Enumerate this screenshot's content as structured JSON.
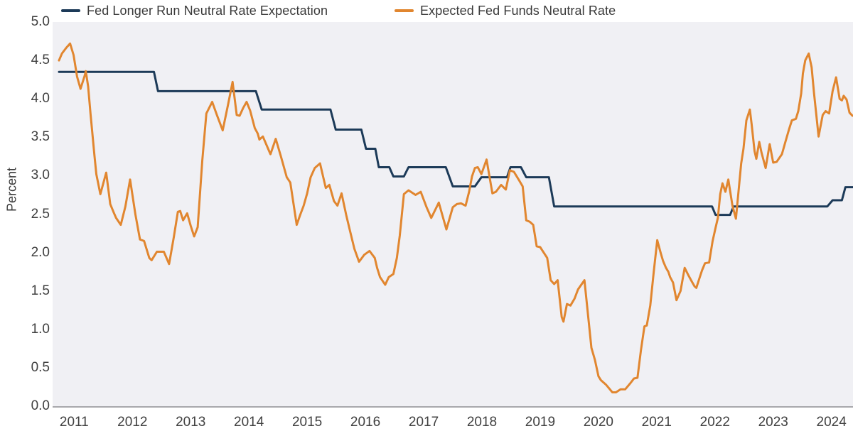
{
  "y_axis_title": "Percent",
  "chart_data": {
    "type": "line",
    "title": "",
    "xlabel": "",
    "ylabel": "Percent",
    "xlim": [
      2010.63,
      2024.37
    ],
    "ylim": [
      0,
      5
    ],
    "grid": false,
    "legend_position": "top",
    "plot_background": "#f0f0f4",
    "axis_line_color": "#a8a8ac",
    "yticks": [
      {
        "value": 5.0,
        "label": "5.0"
      },
      {
        "value": 4.5,
        "label": "4.5"
      },
      {
        "value": 4.0,
        "label": "4.0"
      },
      {
        "value": 3.5,
        "label": "3.5"
      },
      {
        "value": 3.0,
        "label": "3.0"
      },
      {
        "value": 2.5,
        "label": "2.5"
      },
      {
        "value": 2.0,
        "label": "2.0"
      },
      {
        "value": 1.5,
        "label": "1.5"
      },
      {
        "value": 1.0,
        "label": "1.0"
      },
      {
        "value": 0.5,
        "label": "0.5"
      },
      {
        "value": 0.0,
        "label": "0.0"
      }
    ],
    "xticks": [
      {
        "value": 2011,
        "label": "2011"
      },
      {
        "value": 2012,
        "label": "2012"
      },
      {
        "value": 2013,
        "label": "2013"
      },
      {
        "value": 2014,
        "label": "2014"
      },
      {
        "value": 2015,
        "label": "2015"
      },
      {
        "value": 2016,
        "label": "2016"
      },
      {
        "value": 2017,
        "label": "2017"
      },
      {
        "value": 2018,
        "label": "2018"
      },
      {
        "value": 2019,
        "label": "2019"
      },
      {
        "value": 2020,
        "label": "2020"
      },
      {
        "value": 2021,
        "label": "2021"
      },
      {
        "value": 2022,
        "label": "2022"
      },
      {
        "value": 2023,
        "label": "2023"
      },
      {
        "value": 2024,
        "label": "2024"
      }
    ],
    "series": [
      {
        "id": "fed-longer-run-neutral-rate-expectation",
        "name": "Fed Longer Run Neutral Rate Expectation",
        "color": "#1c3a58",
        "width": 3,
        "points": [
          [
            2010.74,
            4.35
          ],
          [
            2012.37,
            4.35
          ],
          [
            2012.44,
            4.1
          ],
          [
            2014.12,
            4.1
          ],
          [
            2014.22,
            3.86
          ],
          [
            2015.4,
            3.86
          ],
          [
            2015.49,
            3.6
          ],
          [
            2015.93,
            3.6
          ],
          [
            2016.01,
            3.35
          ],
          [
            2016.17,
            3.35
          ],
          [
            2016.23,
            3.11
          ],
          [
            2016.41,
            3.11
          ],
          [
            2016.48,
            2.99
          ],
          [
            2016.66,
            2.99
          ],
          [
            2016.74,
            3.11
          ],
          [
            2017.38,
            3.11
          ],
          [
            2017.5,
            2.86
          ],
          [
            2017.88,
            2.86
          ],
          [
            2017.99,
            2.98
          ],
          [
            2018.43,
            2.98
          ],
          [
            2018.49,
            3.11
          ],
          [
            2018.67,
            3.11
          ],
          [
            2018.76,
            2.98
          ],
          [
            2019.15,
            2.98
          ],
          [
            2019.24,
            2.6
          ],
          [
            2021.95,
            2.6
          ],
          [
            2022.01,
            2.49
          ],
          [
            2022.26,
            2.49
          ],
          [
            2022.32,
            2.6
          ],
          [
            2023.93,
            2.6
          ],
          [
            2024.02,
            2.68
          ],
          [
            2024.18,
            2.68
          ],
          [
            2024.24,
            2.85
          ],
          [
            2024.37,
            2.85
          ]
        ]
      },
      {
        "id": "expected-fed-funds-neutral-rate",
        "name": "Expected Fed Funds Neutral Rate",
        "color": "#e1862f",
        "width": 3,
        "points": [
          [
            2010.74,
            4.5
          ],
          [
            2010.79,
            4.59
          ],
          [
            2010.87,
            4.67
          ],
          [
            2010.93,
            4.72
          ],
          [
            2010.99,
            4.57
          ],
          [
            2011.05,
            4.29
          ],
          [
            2011.11,
            4.13
          ],
          [
            2011.18,
            4.3
          ],
          [
            2011.2,
            4.36
          ],
          [
            2011.24,
            4.16
          ],
          [
            2011.28,
            3.81
          ],
          [
            2011.35,
            3.25
          ],
          [
            2011.38,
            3.02
          ],
          [
            2011.45,
            2.76
          ],
          [
            2011.5,
            2.9
          ],
          [
            2011.55,
            3.04
          ],
          [
            2011.62,
            2.63
          ],
          [
            2011.68,
            2.52
          ],
          [
            2011.72,
            2.45
          ],
          [
            2011.8,
            2.36
          ],
          [
            2011.88,
            2.6
          ],
          [
            2011.96,
            2.95
          ],
          [
            2012.05,
            2.5
          ],
          [
            2012.13,
            2.17
          ],
          [
            2012.2,
            2.15
          ],
          [
            2012.29,
            1.93
          ],
          [
            2012.33,
            1.9
          ],
          [
            2012.42,
            2.01
          ],
          [
            2012.54,
            2.01
          ],
          [
            2012.63,
            1.85
          ],
          [
            2012.71,
            2.2
          ],
          [
            2012.78,
            2.53
          ],
          [
            2012.82,
            2.54
          ],
          [
            2012.87,
            2.42
          ],
          [
            2012.94,
            2.51
          ],
          [
            2013.0,
            2.35
          ],
          [
            2013.06,
            2.21
          ],
          [
            2013.12,
            2.33
          ],
          [
            2013.2,
            3.2
          ],
          [
            2013.27,
            3.81
          ],
          [
            2013.37,
            3.96
          ],
          [
            2013.45,
            3.79
          ],
          [
            2013.55,
            3.59
          ],
          [
            2013.64,
            3.92
          ],
          [
            2013.72,
            4.22
          ],
          [
            2013.79,
            3.79
          ],
          [
            2013.84,
            3.78
          ],
          [
            2013.9,
            3.88
          ],
          [
            2013.96,
            3.96
          ],
          [
            2014.02,
            3.85
          ],
          [
            2014.1,
            3.62
          ],
          [
            2014.15,
            3.55
          ],
          [
            2014.18,
            3.47
          ],
          [
            2014.24,
            3.51
          ],
          [
            2014.33,
            3.35
          ],
          [
            2014.37,
            3.28
          ],
          [
            2014.46,
            3.48
          ],
          [
            2014.55,
            3.25
          ],
          [
            2014.65,
            2.98
          ],
          [
            2014.71,
            2.91
          ],
          [
            2014.82,
            2.36
          ],
          [
            2014.88,
            2.49
          ],
          [
            2014.94,
            2.61
          ],
          [
            2015.0,
            2.77
          ],
          [
            2015.06,
            2.98
          ],
          [
            2015.13,
            3.1
          ],
          [
            2015.22,
            3.16
          ],
          [
            2015.32,
            2.84
          ],
          [
            2015.38,
            2.88
          ],
          [
            2015.46,
            2.67
          ],
          [
            2015.52,
            2.61
          ],
          [
            2015.59,
            2.77
          ],
          [
            2015.67,
            2.49
          ],
          [
            2015.73,
            2.3
          ],
          [
            2015.81,
            2.05
          ],
          [
            2015.89,
            1.88
          ],
          [
            2015.98,
            1.97
          ],
          [
            2016.07,
            2.02
          ],
          [
            2016.16,
            1.93
          ],
          [
            2016.2,
            1.8
          ],
          [
            2016.25,
            1.68
          ],
          [
            2016.34,
            1.58
          ],
          [
            2016.4,
            1.68
          ],
          [
            2016.48,
            1.72
          ],
          [
            2016.54,
            1.93
          ],
          [
            2016.59,
            2.22
          ],
          [
            2016.66,
            2.76
          ],
          [
            2016.74,
            2.81
          ],
          [
            2016.86,
            2.75
          ],
          [
            2016.95,
            2.79
          ],
          [
            2017.05,
            2.59
          ],
          [
            2017.13,
            2.45
          ],
          [
            2017.26,
            2.65
          ],
          [
            2017.39,
            2.3
          ],
          [
            2017.5,
            2.59
          ],
          [
            2017.57,
            2.63
          ],
          [
            2017.64,
            2.64
          ],
          [
            2017.72,
            2.61
          ],
          [
            2017.78,
            2.79
          ],
          [
            2017.83,
            2.99
          ],
          [
            2017.88,
            3.1
          ],
          [
            2017.93,
            3.11
          ],
          [
            2017.99,
            3.02
          ],
          [
            2018.08,
            3.21
          ],
          [
            2018.18,
            2.77
          ],
          [
            2018.24,
            2.79
          ],
          [
            2018.33,
            2.88
          ],
          [
            2018.41,
            2.82
          ],
          [
            2018.48,
            3.07
          ],
          [
            2018.55,
            3.05
          ],
          [
            2018.63,
            2.95
          ],
          [
            2018.7,
            2.86
          ],
          [
            2018.76,
            2.42
          ],
          [
            2018.82,
            2.4
          ],
          [
            2018.88,
            2.36
          ],
          [
            2018.94,
            2.08
          ],
          [
            2019.0,
            2.07
          ],
          [
            2019.12,
            1.93
          ],
          [
            2019.18,
            1.64
          ],
          [
            2019.24,
            1.59
          ],
          [
            2019.3,
            1.64
          ],
          [
            2019.37,
            1.16
          ],
          [
            2019.4,
            1.1
          ],
          [
            2019.46,
            1.33
          ],
          [
            2019.52,
            1.31
          ],
          [
            2019.59,
            1.4
          ],
          [
            2019.65,
            1.52
          ],
          [
            2019.76,
            1.64
          ],
          [
            2019.88,
            0.76
          ],
          [
            2019.94,
            0.6
          ],
          [
            2020.0,
            0.39
          ],
          [
            2020.04,
            0.34
          ],
          [
            2020.13,
            0.28
          ],
          [
            2020.24,
            0.18
          ],
          [
            2020.3,
            0.18
          ],
          [
            2020.38,
            0.22
          ],
          [
            2020.46,
            0.22
          ],
          [
            2020.55,
            0.3
          ],
          [
            2020.61,
            0.36
          ],
          [
            2020.67,
            0.37
          ],
          [
            2020.73,
            0.73
          ],
          [
            2020.79,
            1.04
          ],
          [
            2020.83,
            1.05
          ],
          [
            2020.89,
            1.31
          ],
          [
            2020.95,
            1.75
          ],
          [
            2021.01,
            2.16
          ],
          [
            2021.07,
            1.99
          ],
          [
            2021.11,
            1.89
          ],
          [
            2021.16,
            1.8
          ],
          [
            2021.2,
            1.75
          ],
          [
            2021.23,
            1.68
          ],
          [
            2021.28,
            1.61
          ],
          [
            2021.34,
            1.38
          ],
          [
            2021.41,
            1.5
          ],
          [
            2021.48,
            1.8
          ],
          [
            2021.54,
            1.71
          ],
          [
            2021.59,
            1.64
          ],
          [
            2021.65,
            1.56
          ],
          [
            2021.68,
            1.54
          ],
          [
            2021.74,
            1.68
          ],
          [
            2021.78,
            1.77
          ],
          [
            2021.83,
            1.86
          ],
          [
            2021.9,
            1.87
          ],
          [
            2021.96,
            2.15
          ],
          [
            2022.01,
            2.32
          ],
          [
            2022.05,
            2.45
          ],
          [
            2022.09,
            2.76
          ],
          [
            2022.13,
            2.9
          ],
          [
            2022.18,
            2.79
          ],
          [
            2022.23,
            2.95
          ],
          [
            2022.3,
            2.61
          ],
          [
            2022.36,
            2.44
          ],
          [
            2022.45,
            3.16
          ],
          [
            2022.49,
            3.35
          ],
          [
            2022.54,
            3.72
          ],
          [
            2022.6,
            3.86
          ],
          [
            2022.63,
            3.67
          ],
          [
            2022.68,
            3.32
          ],
          [
            2022.71,
            3.22
          ],
          [
            2022.76,
            3.44
          ],
          [
            2022.8,
            3.3
          ],
          [
            2022.87,
            3.1
          ],
          [
            2022.94,
            3.41
          ],
          [
            2023.0,
            3.17
          ],
          [
            2023.06,
            3.18
          ],
          [
            2023.15,
            3.28
          ],
          [
            2023.21,
            3.44
          ],
          [
            2023.27,
            3.6
          ],
          [
            2023.32,
            3.72
          ],
          [
            2023.39,
            3.74
          ],
          [
            2023.43,
            3.84
          ],
          [
            2023.48,
            4.07
          ],
          [
            2023.51,
            4.33
          ],
          [
            2023.55,
            4.5
          ],
          [
            2023.61,
            4.59
          ],
          [
            2023.66,
            4.41
          ],
          [
            2023.7,
            4.08
          ],
          [
            2023.74,
            3.79
          ],
          [
            2023.78,
            3.51
          ],
          [
            2023.85,
            3.79
          ],
          [
            2023.9,
            3.84
          ],
          [
            2023.96,
            3.81
          ],
          [
            2024.02,
            4.1
          ],
          [
            2024.08,
            4.28
          ],
          [
            2024.14,
            4.0
          ],
          [
            2024.18,
            3.98
          ],
          [
            2024.21,
            4.04
          ],
          [
            2024.26,
            3.99
          ],
          [
            2024.31,
            3.82
          ],
          [
            2024.36,
            3.78
          ]
        ]
      }
    ]
  }
}
